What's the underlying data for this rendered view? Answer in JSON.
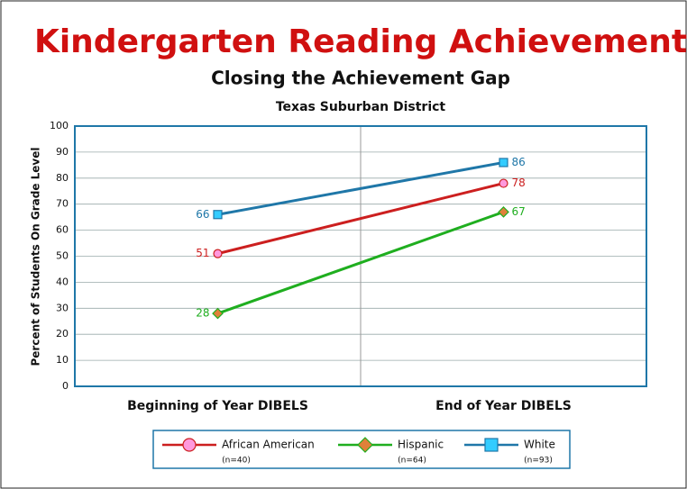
{
  "chart_data": {
    "type": "line",
    "title": "Kindergarten Reading Achievement",
    "subtitle": "Closing the Achievement Gap",
    "subtitle2": "Texas Suburban District",
    "y_label": "Percent of Students On Grade Level",
    "categories": [
      "Beginning of Year DIBELS",
      "End of Year DIBELS"
    ],
    "series": [
      {
        "name": "African American",
        "n_label": "(n=40)",
        "color": "#cc1f1f",
        "marker": "circle",
        "marker_color": "#ff99dd",
        "values": [
          51,
          78
        ]
      },
      {
        "name": "Hispanic",
        "n_label": "(n=64)",
        "color": "#1fae1f",
        "marker": "diamond",
        "marker_color": "#e0803a",
        "values": [
          28,
          67
        ]
      },
      {
        "name": "White",
        "n_label": "(n=93)",
        "color": "#1f77a8",
        "marker": "square",
        "marker_color": "#33ccff",
        "values": [
          66,
          86
        ]
      }
    ],
    "ylim": [
      0,
      100
    ],
    "yticks": [
      0,
      10,
      20,
      30,
      40,
      50,
      60,
      70,
      80,
      90,
      100
    ],
    "grid": true,
    "legend": "bottom"
  }
}
